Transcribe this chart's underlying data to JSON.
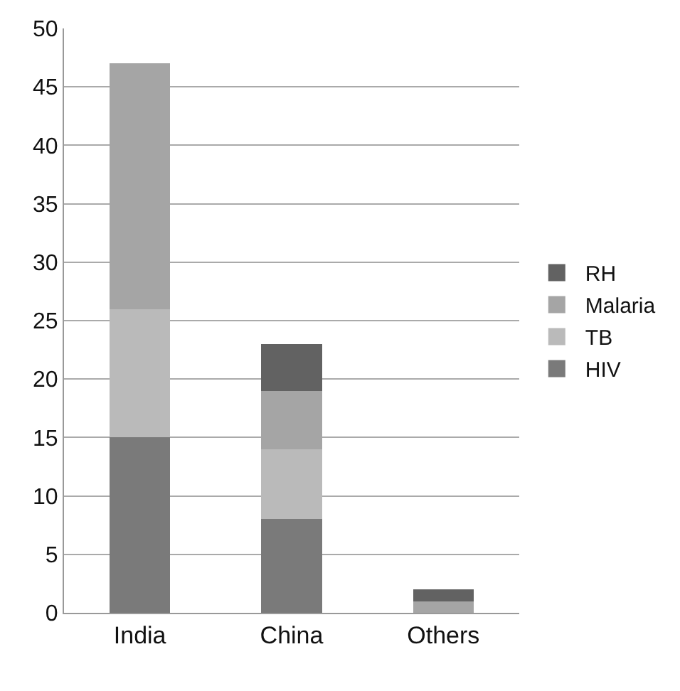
{
  "chart_data": {
    "type": "bar",
    "stacked": true,
    "categories": [
      "India",
      "China",
      "Others"
    ],
    "series": [
      {
        "name": "HIV",
        "color": "#7a7a7a",
        "values": [
          15,
          8,
          0
        ]
      },
      {
        "name": "TB",
        "color": "#bababa",
        "values": [
          11,
          6,
          0
        ]
      },
      {
        "name": "Malaria",
        "color": "#a5a5a5",
        "values": [
          21,
          5,
          1
        ]
      },
      {
        "name": "RH",
        "color": "#626262",
        "values": [
          0,
          4,
          1
        ]
      }
    ],
    "ylim": [
      0,
      50
    ],
    "yticks": [
      0,
      5,
      10,
      15,
      20,
      25,
      30,
      35,
      40,
      45,
      50
    ],
    "grid": "y",
    "legend": "right"
  }
}
